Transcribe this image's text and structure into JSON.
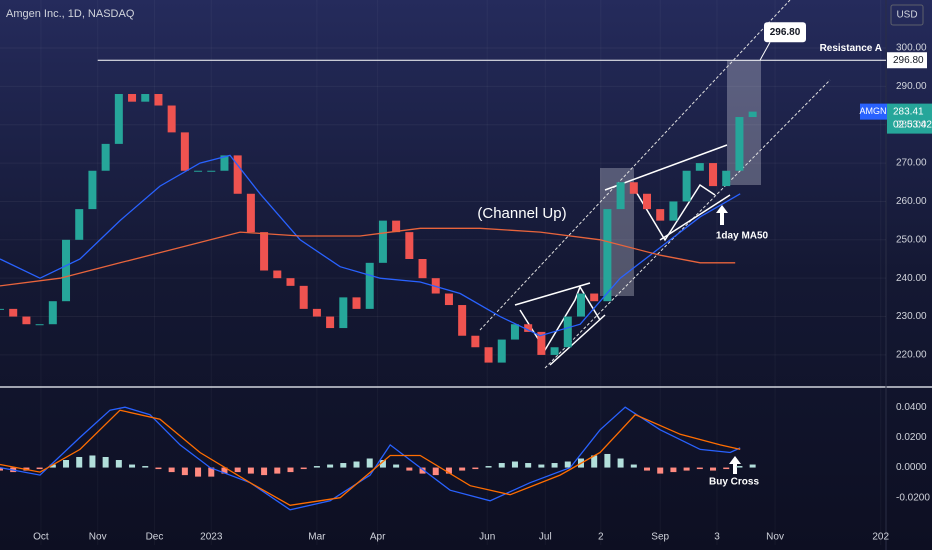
{
  "chart_data": [
    {
      "type": "candlestick",
      "title": "Amgen Inc., 1D, NASDAQ",
      "currency": "USD",
      "values": [
        232,
        230,
        228,
        228,
        234,
        250,
        258,
        268,
        275,
        288,
        286,
        288,
        285,
        278,
        268,
        268,
        268,
        272,
        262,
        252,
        242,
        240,
        238,
        232,
        230,
        227,
        235,
        232,
        244,
        255,
        252,
        245,
        240,
        236,
        233,
        225,
        222,
        218,
        224,
        228,
        226,
        220,
        222,
        230,
        236,
        234,
        258,
        265,
        262,
        258,
        255,
        260,
        268,
        270,
        264,
        268,
        282,
        283.41
      ],
      "up_color": "#26a69a",
      "down_color": "#ef5350",
      "series": [
        {
          "color": "#2962ff",
          "x": [
            0,
            3.03,
            6.06,
            9.09,
            12.12,
            15.15,
            17.42,
            19.7,
            22.73,
            25.76,
            28.79,
            31.82,
            34.85,
            37.88,
            40.91,
            43.94,
            46.97,
            50,
            53.03,
            56.06
          ],
          "values": [
            245,
            240,
            245,
            255,
            264,
            270,
            272,
            262,
            250,
            243,
            240,
            239,
            236,
            230,
            225,
            228,
            240,
            248,
            256,
            262
          ]
        },
        {
          "color": "#e8643c",
          "x": [
            0,
            4.55,
            9.09,
            13.64,
            18.18,
            22.73,
            27.27,
            31.82,
            36.36,
            40.91,
            45.45,
            50,
            53.03,
            55.68
          ],
          "values": [
            238,
            240,
            244,
            248,
            252,
            251,
            251,
            253,
            253,
            252,
            250,
            246,
            244,
            244
          ]
        }
      ],
      "xlim": [
        0,
        67.1
      ],
      "xticks": [
        {
          "value": 3.1,
          "label": "Oct"
        },
        {
          "value": 7.4,
          "label": "Nov"
        },
        {
          "value": 11.7,
          "label": "Dec"
        },
        {
          "value": 16,
          "label": "2023"
        },
        {
          "value": 24,
          "label": "Mar"
        },
        {
          "value": 28.6,
          "label": "Apr"
        },
        {
          "value": 36.9,
          "label": "Jun"
        },
        {
          "value": 41.3,
          "label": "Jul"
        },
        {
          "value": 45.5,
          "label": "2"
        },
        {
          "value": 50,
          "label": "Sep"
        },
        {
          "value": 54.3,
          "label": "3"
        },
        {
          "value": 58.7,
          "label": "Nov"
        },
        {
          "value": 66.7,
          "label": "202"
        }
      ],
      "ylim": [
        211.9,
        312.5
      ],
      "yticks": [
        {
          "value": 220,
          "label": "220.00"
        },
        {
          "value": 230,
          "label": "230.00"
        },
        {
          "value": 240,
          "label": "240.00"
        },
        {
          "value": 250,
          "label": "250.00"
        },
        {
          "value": 260,
          "label": "260.00"
        },
        {
          "value": 270,
          "label": "270.00"
        },
        {
          "value": 280,
          "label": "280.00"
        },
        {
          "value": 290,
          "label": "290.00"
        },
        {
          "value": 300,
          "label": "300.00"
        }
      ],
      "grid": true,
      "resistance": {
        "label": "Resistance A",
        "value": 296.8,
        "value_label": "296.80"
      },
      "last_price": {
        "symbol": "AMGN",
        "value": 283.41,
        "countdown": "02:53:42"
      },
      "annotations": [
        "(Channel Up)",
        "1day MA50"
      ]
    },
    {
      "type": "macd",
      "series": [
        {
          "color": "#2962ff",
          "x": [
            0,
            3.03,
            6.06,
            8.33,
            9.47,
            11.36,
            13.64,
            15.91,
            18.94,
            21.97,
            25,
            28.03,
            29.55,
            31.06,
            34.09,
            37.12,
            40.15,
            43.18,
            45.45,
            47.35,
            50,
            53.03,
            55.3,
            56.06
          ],
          "values": [
            0,
            -0.005,
            0.02,
            0.038,
            0.04,
            0.035,
            0.015,
            0,
            -0.01,
            -0.028,
            -0.022,
            -0.005,
            0.015,
            0.005,
            -0.015,
            -0.022,
            -0.01,
            0,
            0.025,
            0.04,
            0.025,
            0.012,
            0.01,
            0.013
          ]
        },
        {
          "color": "#ff6d00",
          "x": [
            0,
            3.03,
            6.06,
            9.09,
            12.12,
            15.15,
            18.94,
            21.97,
            25.76,
            29.55,
            31.82,
            35.61,
            38.64,
            42.42,
            45.45,
            48.11,
            51.52,
            54.55,
            56.06
          ],
          "values": [
            0.002,
            -0.003,
            0.012,
            0.038,
            0.032,
            0.01,
            -0.01,
            -0.025,
            -0.02,
            0.008,
            0.008,
            -0.012,
            -0.018,
            -0.005,
            0.01,
            0.035,
            0.022,
            0.015,
            0.012
          ]
        }
      ],
      "histogram": {
        "up_color": "#b2dfdb",
        "down_color": "#ff8a80",
        "values": [
          -0.002,
          -0.003,
          -0.002,
          -0.001,
          0.002,
          0.005,
          0.007,
          0.008,
          0.007,
          0.005,
          0.002,
          0.001,
          -0.001,
          -0.003,
          -0.005,
          -0.006,
          -0.006,
          -0.004,
          -0.003,
          -0.004,
          -0.005,
          -0.004,
          -0.003,
          -0.001,
          0.001,
          0.002,
          0.003,
          0.004,
          0.006,
          0.005,
          0.002,
          -0.002,
          -0.004,
          -0.005,
          -0.004,
          -0.002,
          -0.001,
          0.001,
          0.003,
          0.004,
          0.003,
          0.002,
          0.003,
          0.004,
          0.006,
          0.008,
          0.009,
          0.006,
          0.002,
          -0.002,
          -0.004,
          -0.003,
          -0.002,
          -0.001,
          -0.002,
          -0.001,
          0.001,
          0.002
        ]
      },
      "xlim": [
        0,
        67.1
      ],
      "ylim": [
        -0.0513,
        0.0527
      ],
      "yticks": [
        {
          "value": 0.04,
          "label": "0.0400"
        },
        {
          "value": 0.02,
          "label": "0.0200"
        },
        {
          "value": 0,
          "label": "0.0000"
        },
        {
          "value": -0.02,
          "label": "-0.0200"
        }
      ],
      "annotations": [
        "Buy Cross"
      ]
    }
  ]
}
